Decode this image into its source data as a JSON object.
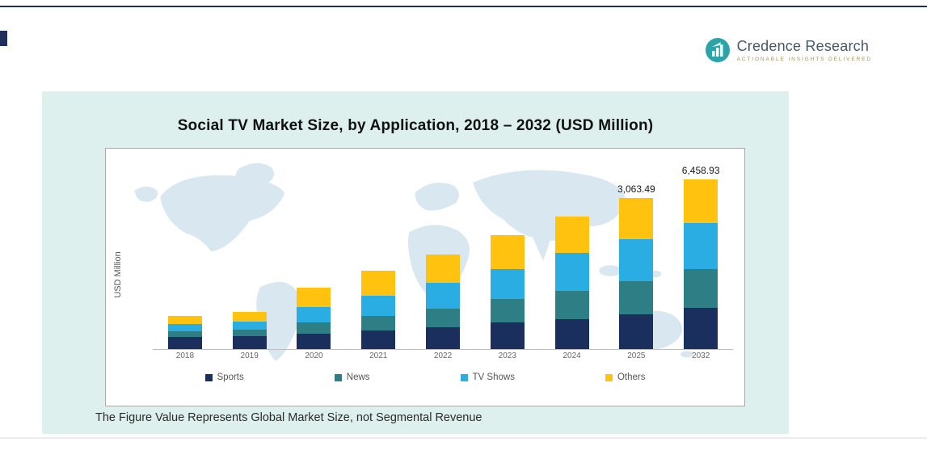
{
  "header": {
    "logo": {
      "title": "Credence Research",
      "tagline": "Actionable Insights Delivered"
    }
  },
  "card": {
    "footnote": "The Figure Value Represents Global Market Size, not Segmental Revenue"
  },
  "chart_data": {
    "type": "bar",
    "stacked": true,
    "title": "Social TV Market Size, by Application, 2018 – 2032 (USD Million)",
    "ylabel": "USD Million",
    "xlabel": "",
    "categories": [
      "2018",
      "2019",
      "2020",
      "2021",
      "2022",
      "2023",
      "2024",
      "2025",
      "2032"
    ],
    "series": [
      {
        "name": "Sports",
        "color": "#1b2f5e",
        "values": [
          450,
          480,
          600,
          720,
          840,
          1020,
          1140,
          1320,
          1560
        ]
      },
      {
        "name": "News",
        "color": "#2e7e85",
        "values": [
          240,
          270,
          420,
          540,
          720,
          900,
          1080,
          1260,
          1500
        ]
      },
      {
        "name": "TV Shows",
        "color": "#29ade3",
        "values": [
          270,
          300,
          600,
          780,
          960,
          1140,
          1440,
          1620,
          1740
        ]
      },
      {
        "name": "Others",
        "color": "#ffc20e",
        "values": [
          300,
          360,
          720,
          960,
          1080,
          1290,
          1410,
          1560,
          1680
        ]
      }
    ],
    "data_labels": {
      "2025": "3,063.49",
      "2032": "6,458.93"
    },
    "legend_position": "bottom",
    "grid": false
  },
  "colors": {
    "accent_navy": "#1e2f5d",
    "card_bg": "#ddf0ed",
    "map_fill": "#d9e7f1"
  }
}
